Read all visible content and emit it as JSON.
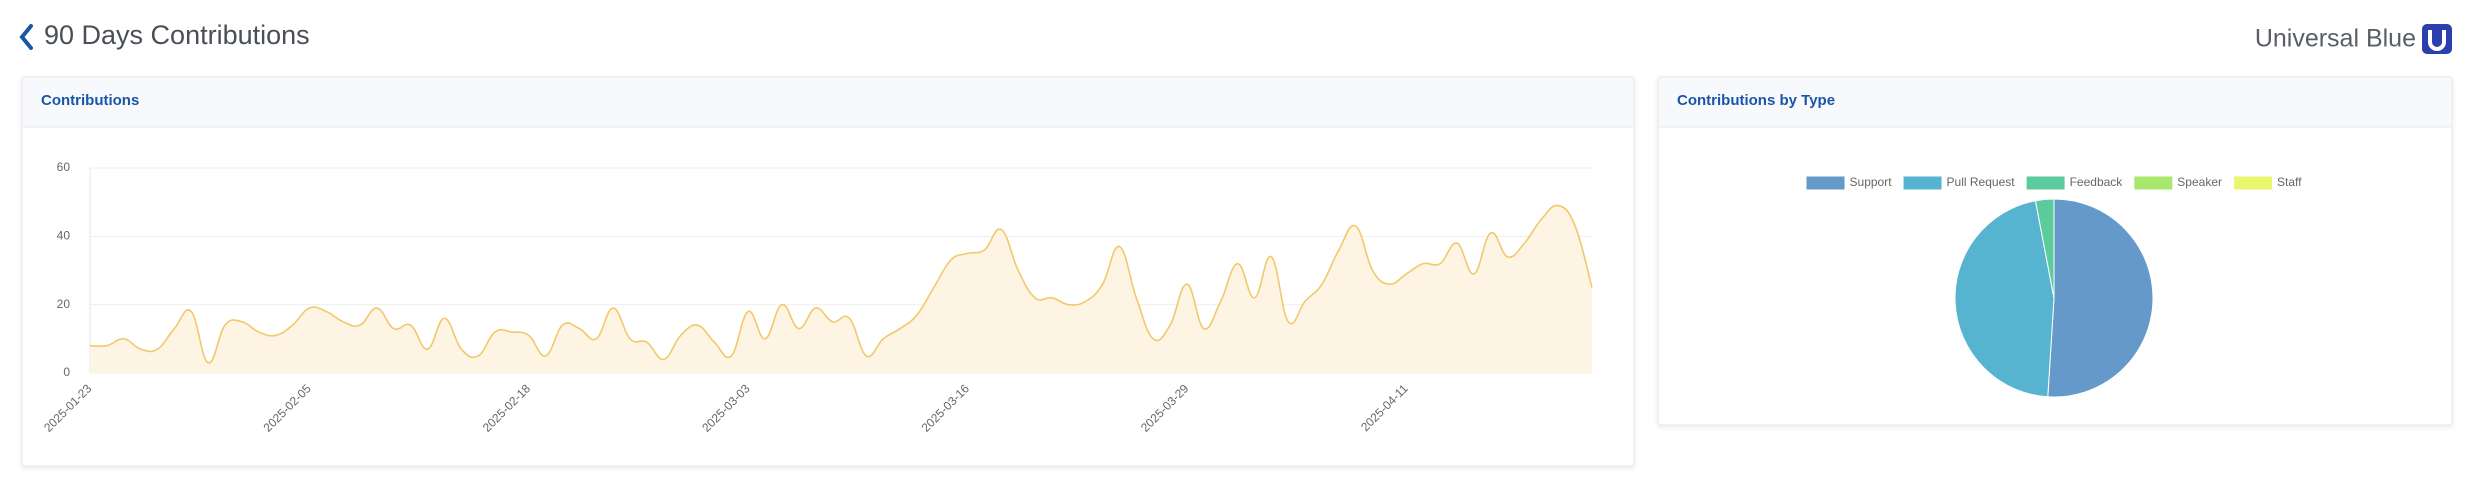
{
  "header": {
    "title": "90 Days Contributions",
    "brand": "Universal Blue"
  },
  "chart_data": [
    {
      "type": "line",
      "title": "Contributions",
      "categories": [
        "2025-01-23",
        null,
        null,
        null,
        null,
        null,
        null,
        null,
        null,
        null,
        null,
        null,
        null,
        "2025-02-05",
        null,
        null,
        null,
        null,
        null,
        null,
        null,
        null,
        null,
        null,
        null,
        null,
        "2025-02-18",
        null,
        null,
        null,
        null,
        null,
        null,
        null,
        null,
        null,
        null,
        null,
        null,
        "2025-03-03",
        null,
        null,
        null,
        null,
        null,
        null,
        null,
        null,
        null,
        null,
        null,
        null,
        "2025-03-16",
        null,
        null,
        null,
        null,
        null,
        null,
        null,
        null,
        null,
        null,
        null,
        null,
        "2025-03-29",
        null,
        null,
        null,
        null,
        null,
        null,
        null,
        null,
        null,
        null,
        null,
        null,
        "2025-04-11",
        null,
        null,
        null,
        null,
        null,
        null,
        null,
        null,
        null,
        null,
        null
      ],
      "values": [
        8,
        8,
        10,
        7,
        7,
        13,
        18,
        3,
        14,
        15,
        12,
        11,
        14,
        19,
        18,
        15,
        14,
        19,
        13,
        14,
        7,
        16,
        7,
        5,
        12,
        12,
        11,
        5,
        14,
        13,
        10,
        19,
        10,
        9,
        4,
        11,
        14,
        9,
        5,
        18,
        10,
        20,
        13,
        19,
        15,
        16,
        5,
        10,
        13,
        17,
        25,
        33,
        35,
        36,
        42,
        30,
        22,
        22,
        20,
        21,
        26,
        37,
        22,
        10,
        14,
        26,
        13,
        21,
        32,
        22,
        34,
        15,
        21,
        26,
        36,
        43,
        30,
        26,
        29,
        32,
        32,
        38,
        29,
        41,
        34,
        38,
        45,
        49,
        43,
        25
      ],
      "color": "#f2c86b",
      "fill": "#fdf4e3",
      "ylim": [
        0,
        60
      ],
      "yticks": [
        0,
        20,
        40,
        60
      ],
      "grid": true
    },
    {
      "type": "pie",
      "title": "Contributions by Type",
      "categories": [
        "Support",
        "Pull Request",
        "Feedback",
        "Speaker",
        "Staff"
      ],
      "values": [
        51,
        46,
        3,
        0,
        0
      ],
      "colors": [
        "#6499c9",
        "#56b4d0",
        "#5ccb9b",
        "#a9e86c",
        "#e9f66e"
      ],
      "legend": "top"
    }
  ]
}
